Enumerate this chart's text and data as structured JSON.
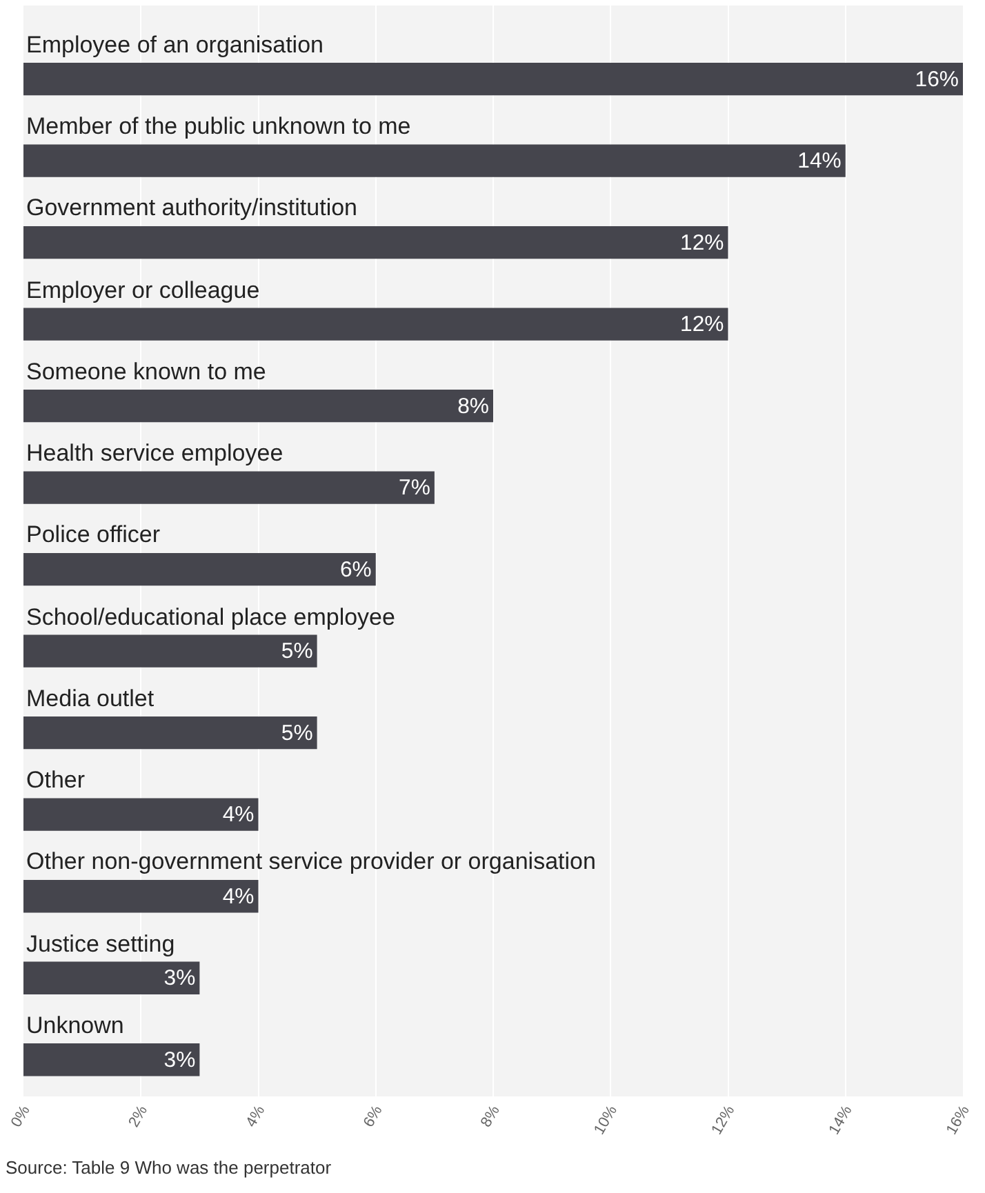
{
  "chart_data": {
    "type": "bar",
    "orientation": "horizontal",
    "categories": [
      "Employee of an organisation",
      "Member of the public unknown to me",
      "Government authority/institution",
      "Employer or colleague",
      "Someone known to me",
      "Health service employee",
      "Police officer",
      "School/educational place employee",
      "Media outlet",
      "Other",
      "Other non-government service provider or organisation",
      "Justice setting",
      "Unknown"
    ],
    "values": [
      16,
      14,
      12,
      12,
      8,
      7,
      6,
      5,
      5,
      4,
      4,
      3,
      3
    ],
    "value_labels": [
      "16%",
      "14%",
      "12%",
      "12%",
      "8%",
      "7%",
      "6%",
      "5%",
      "5%",
      "4%",
      "4%",
      "3%",
      "3%"
    ],
    "color": "#45454d",
    "xlim": [
      0,
      16
    ],
    "xticks": [
      {
        "value": 0,
        "label": "0%"
      },
      {
        "value": 2,
        "label": "2%"
      },
      {
        "value": 4,
        "label": "4%"
      },
      {
        "value": 6,
        "label": "6%"
      },
      {
        "value": 8,
        "label": "8%"
      },
      {
        "value": 10,
        "label": "10%"
      },
      {
        "value": 12,
        "label": "12%"
      },
      {
        "value": 14,
        "label": "14%"
      },
      {
        "value": 16,
        "label": "16%"
      }
    ],
    "grid": "x",
    "annotations": [
      "Source: Table 9 Who was the perpetrator"
    ]
  }
}
